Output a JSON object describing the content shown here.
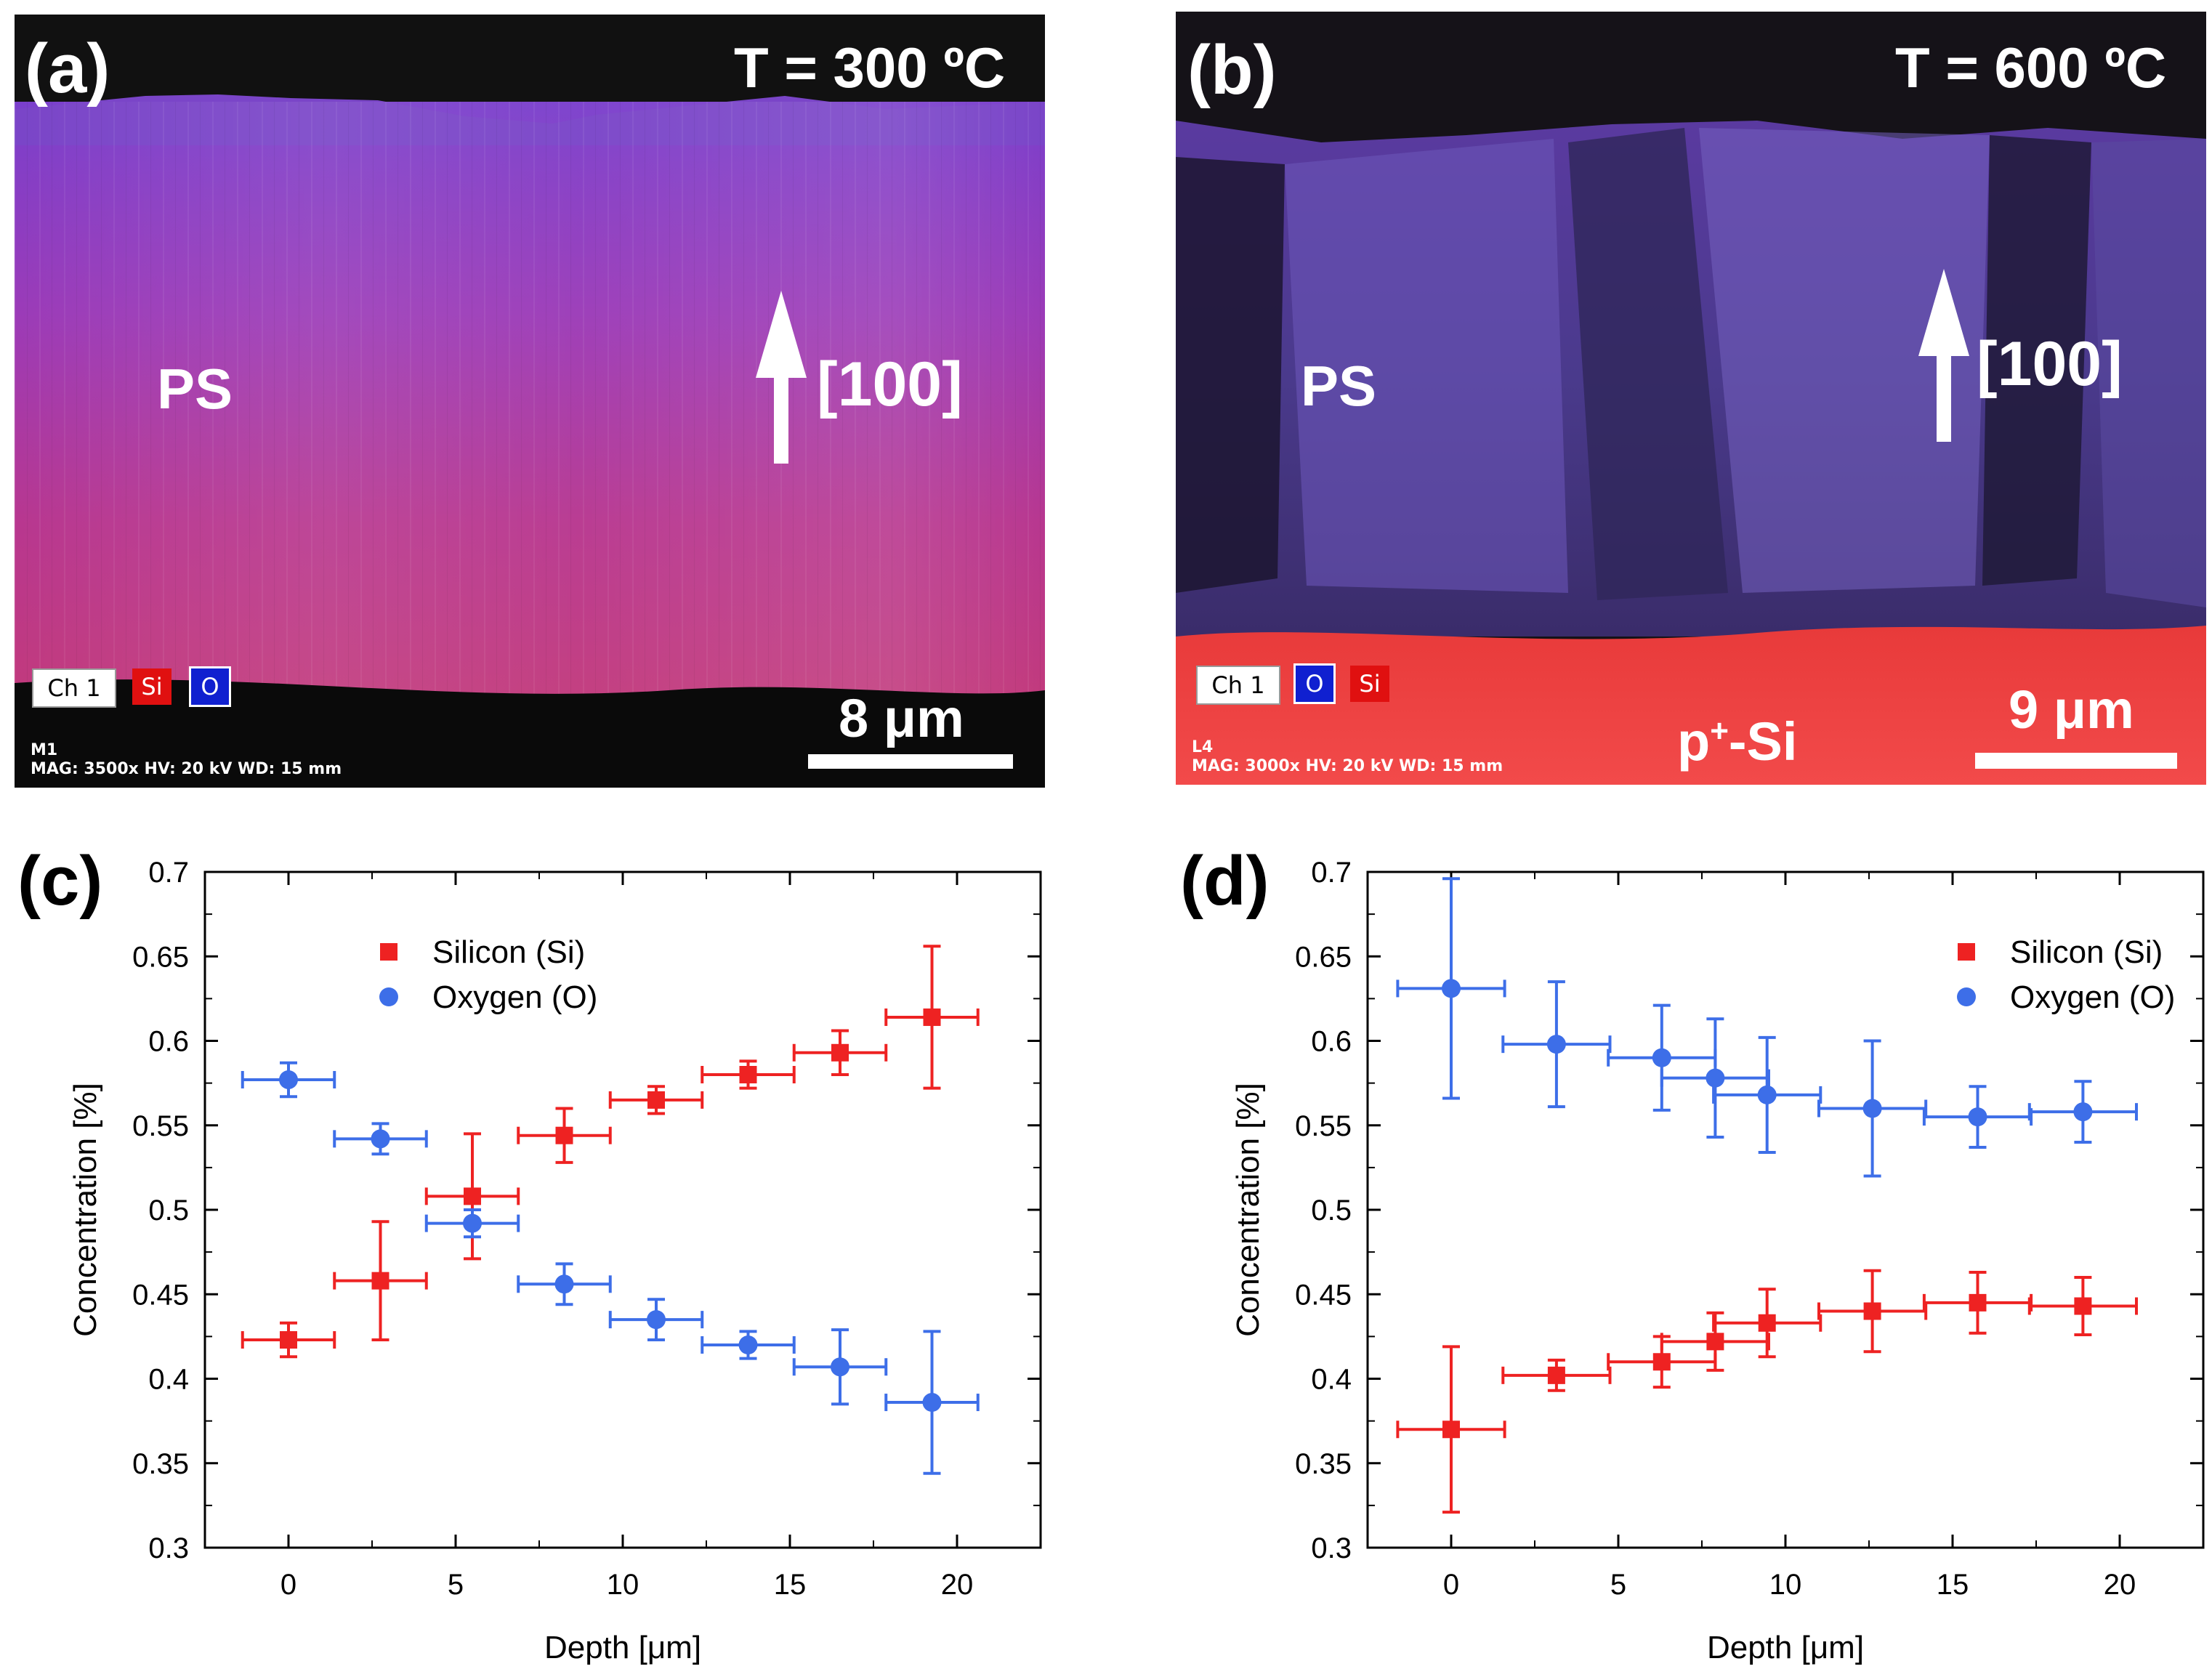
{
  "figure": {
    "panel_a": {
      "letter": "(a)",
      "temperature": "T = 300 ºC",
      "region_label": "PS",
      "direction": "[100]",
      "channels": [
        "Ch 1",
        "Si",
        "O"
      ],
      "meta_id": "M1",
      "meta_info": "MAG: 3500x   HV: 20 kV   WD: 15 mm",
      "scale_bar": "8 μm"
    },
    "panel_b": {
      "letter": "(b)",
      "temperature": "T = 600 ºC",
      "region_label": "PS",
      "direction": "[100]",
      "channels": [
        "Ch 1",
        "O",
        "Si"
      ],
      "meta_id": "L4",
      "meta_info": "MAG: 3000x   HV: 20 kV   WD: 15 mm",
      "substrate_main": "p",
      "substrate_sup": "+",
      "substrate_rest": "-Si",
      "scale_bar": "9 μm"
    }
  },
  "chart_data": [
    {
      "id": "c",
      "letter": "(c)",
      "type": "scatter",
      "xlabel": "Depth [μm]",
      "ylabel": "Concentration [%]",
      "xlim": [
        -2.5,
        22.5
      ],
      "ylim": [
        0.3,
        0.7
      ],
      "xticks": [
        0,
        5,
        10,
        15,
        20
      ],
      "xtick_labels": [
        "0",
        "5",
        "10",
        "15",
        "20"
      ],
      "yticks": [
        0.3,
        0.35,
        0.4,
        0.45,
        0.5,
        0.55,
        0.6,
        0.65,
        0.7
      ],
      "ytick_labels": [
        "0.3",
        "0.35",
        "0.4",
        "0.45",
        "0.5",
        "0.55",
        "0.6",
        "0.65",
        "0.7"
      ],
      "legend_position": "top-center",
      "series": [
        {
          "name": "Silicon (Si)",
          "marker": "square",
          "color": "#ee2222",
          "x": [
            0,
            2.75,
            5.5,
            8.25,
            11,
            13.75,
            16.5,
            19.25
          ],
          "y": [
            0.423,
            0.458,
            0.508,
            0.544,
            0.565,
            0.58,
            0.593,
            0.614
          ],
          "yerr": [
            0.01,
            0.035,
            0.037,
            0.016,
            0.008,
            0.008,
            0.013,
            0.042
          ],
          "xerr": [
            1.375,
            1.375,
            1.375,
            1.375,
            1.375,
            1.375,
            1.375,
            1.375
          ]
        },
        {
          "name": "Oxygen (O)",
          "marker": "circle",
          "color": "#3d6ee8",
          "x": [
            0,
            2.75,
            5.5,
            8.25,
            11,
            13.75,
            16.5,
            19.25
          ],
          "y": [
            0.577,
            0.542,
            0.492,
            0.456,
            0.435,
            0.42,
            0.407,
            0.386
          ],
          "yerr": [
            0.01,
            0.009,
            0.008,
            0.012,
            0.012,
            0.008,
            0.022,
            0.042
          ],
          "xerr": [
            1.375,
            1.375,
            1.375,
            1.375,
            1.375,
            1.375,
            1.375,
            1.375
          ]
        }
      ]
    },
    {
      "id": "d",
      "letter": "(d)",
      "type": "scatter",
      "xlabel": "Depth [μm]",
      "ylabel": "Concentration [%]",
      "xlim": [
        -2.5,
        22.5
      ],
      "ylim": [
        0.3,
        0.7
      ],
      "xticks": [
        0,
        5,
        10,
        15,
        20
      ],
      "xtick_labels": [
        "0",
        "5",
        "10",
        "15",
        "20"
      ],
      "yticks": [
        0.3,
        0.35,
        0.4,
        0.45,
        0.5,
        0.55,
        0.6,
        0.65,
        0.7
      ],
      "ytick_labels": [
        "0.3",
        "0.35",
        "0.4",
        "0.45",
        "0.5",
        "0.55",
        "0.6",
        "0.65",
        "0.7"
      ],
      "legend_position": "top-right",
      "series": [
        {
          "name": "Silicon (Si)",
          "marker": "square",
          "color": "#ee2222",
          "x": [
            0,
            3.15,
            6.3,
            7.9,
            9.45,
            12.6,
            15.75,
            18.9
          ],
          "y": [
            0.37,
            0.402,
            0.41,
            0.422,
            0.433,
            0.44,
            0.445,
            0.443
          ],
          "yerr": [
            0.049,
            0.009,
            0.015,
            0.017,
            0.02,
            0.024,
            0.018,
            0.017
          ],
          "xerr": [
            1.6,
            1.6,
            1.6,
            1.6,
            1.6,
            1.6,
            1.6,
            1.6
          ]
        },
        {
          "name": "Oxygen (O)",
          "marker": "circle",
          "color": "#3d6ee8",
          "x": [
            0,
            3.15,
            6.3,
            7.9,
            9.45,
            12.6,
            15.75,
            18.9
          ],
          "y": [
            0.631,
            0.598,
            0.59,
            0.578,
            0.568,
            0.56,
            0.555,
            0.558
          ],
          "yerr": [
            0.065,
            0.037,
            0.031,
            0.035,
            0.034,
            0.04,
            0.018,
            0.018
          ],
          "xerr": [
            1.6,
            1.6,
            1.6,
            1.6,
            1.6,
            1.6,
            1.6,
            1.6
          ]
        }
      ]
    }
  ]
}
